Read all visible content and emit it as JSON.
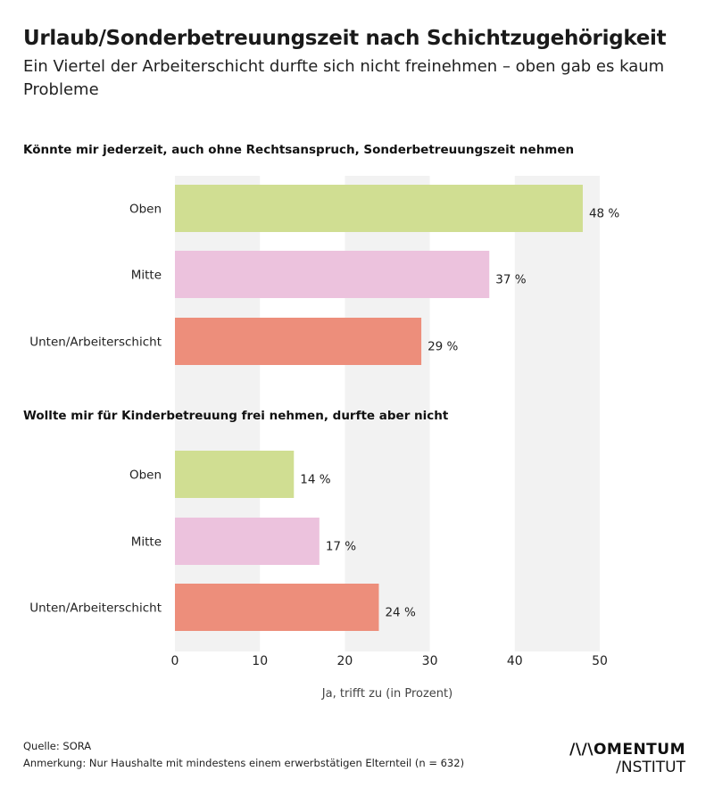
{
  "title": "Urlaub/Sonderbetreuungszeit nach Schichtzugehörigkeit",
  "subtitle": "Ein Viertel der Arbeiterschicht durfte sich nicht freinehmen – oben gab es kaum Probleme",
  "source": "Quelle: SORA",
  "note": "Anmerkung: Nur Haushalte mit mindestens einem erwerbstätigen Elternteil (n = 632)",
  "logo": {
    "line1": "//\\/IOMENTUM",
    "line2": "/NSTITUT"
  },
  "chart_data": {
    "type": "bar",
    "orientation": "horizontal",
    "xlabel": "Ja, trifft zu (in Prozent)",
    "xlim": [
      0,
      50
    ],
    "xticks": [
      "0",
      "10",
      "20",
      "30",
      "40",
      "50"
    ],
    "grid": "alternating vertical bands",
    "groups": [
      {
        "title": "Könnte mir jederzeit, auch ohne Rechtsanspruch, Sonderbetreuungszeit nehmen",
        "categories": [
          "Oben",
          "Mitte",
          "Unten/Arbeiterschicht"
        ],
        "values": [
          48,
          37,
          29
        ],
        "labels": [
          "48 %",
          "37 %",
          "29 %"
        ]
      },
      {
        "title": "Wollte mir für Kinderbetreuung frei nehmen, durfte aber nicht",
        "categories": [
          "Oben",
          "Mitte",
          "Unten/Arbeiterschicht"
        ],
        "values": [
          14,
          17,
          24
        ],
        "labels": [
          "14 %",
          "17 %",
          "24 %"
        ]
      }
    ],
    "colors": {
      "Oben": "#d0de92",
      "Mitte": "#ecc2dd",
      "Unten/Arbeiterschicht": "#ed8e7b",
      "band": "#f2f2f2"
    }
  }
}
